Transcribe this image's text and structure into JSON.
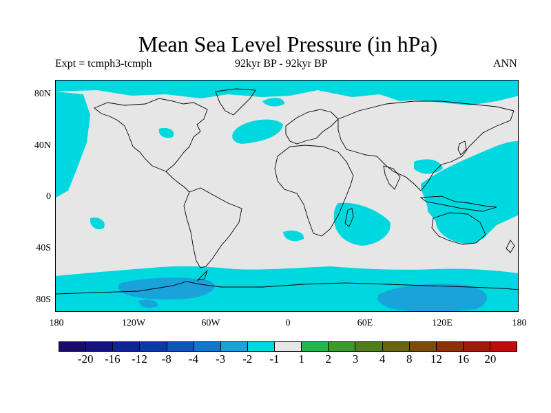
{
  "title": "Mean Sea Level Pressure (in hPa)",
  "subtitle_left": "Expt = tcmph3-tcmph",
  "subtitle_center": "92kyr BP - 92kyr BP",
  "subtitle_right": "ANN",
  "map": {
    "projection": "cylindrical-equidistant",
    "lon_range": [
      -180,
      180
    ],
    "lat_range": [
      -90,
      90
    ],
    "background_color": "#e6e6e6",
    "coastline_color": "#000000",
    "lat_labels": [
      "80N",
      "40N",
      "0",
      "40S",
      "80S"
    ],
    "lon_labels": [
      "180",
      "120W",
      "60W",
      "0",
      "60E",
      "120E",
      "180"
    ]
  },
  "colorbar": {
    "colors": [
      "#1a0a6b",
      "#13127e",
      "#0d2596",
      "#0a3aaa",
      "#0d55bc",
      "#1177cc",
      "#1aa3db",
      "#00d8df",
      "#e6e6e6",
      "#22b84a",
      "#3b9a2e",
      "#4f7e1e",
      "#6a6410",
      "#7f4a0a",
      "#8f2f08",
      "#a01a08",
      "#c20a0a"
    ],
    "labels": [
      "-20",
      "-16",
      "-12",
      "-8",
      "-4",
      "-3",
      "-2",
      "-1",
      "1",
      "2",
      "3",
      "4",
      "8",
      "12",
      "16",
      "20"
    ]
  }
}
